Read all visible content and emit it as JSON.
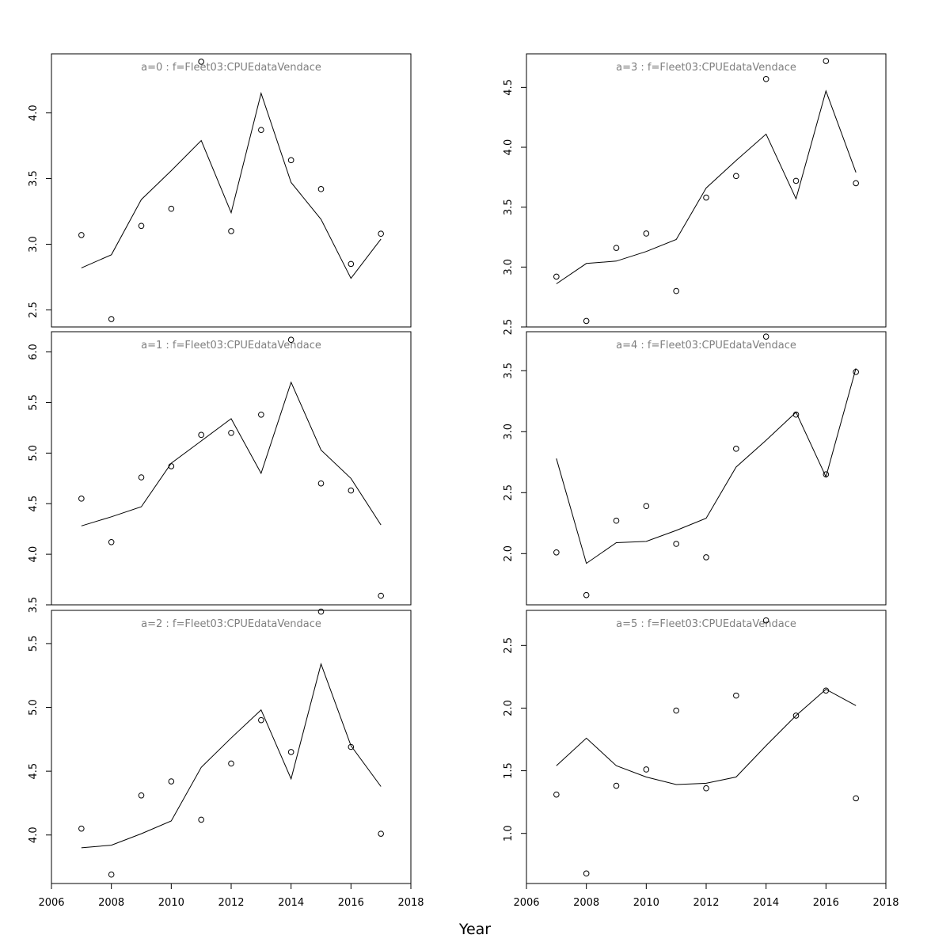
{
  "xlabel": "Year",
  "colors": {
    "axis": "#000000",
    "panel_title": "#7f7f7f",
    "line": "#000000",
    "points": "#000000"
  },
  "x_axis": {
    "xlim": [
      2006,
      2018
    ],
    "ticks": [
      "2006",
      "2008",
      "2010",
      "2012",
      "2014",
      "2016",
      "2018"
    ]
  },
  "chart_data": [
    {
      "type": "line",
      "title": "a=0 : f=Fleet03:CPUEdataVendace",
      "x": [
        2007,
        2008,
        2009,
        2010,
        2011,
        2012,
        2013,
        2014,
        2015,
        2016,
        2017
      ],
      "series": [
        {
          "style": "points",
          "values": [
            3.07,
            2.43,
            3.14,
            3.27,
            4.39,
            3.1,
            3.87,
            3.64,
            3.42,
            2.85,
            3.08
          ]
        },
        {
          "style": "line",
          "values": [
            2.82,
            2.92,
            3.34,
            3.56,
            3.79,
            3.24,
            4.15,
            3.47,
            3.19,
            2.74,
            3.04
          ]
        }
      ],
      "ylim": [
        2.37,
        4.45
      ],
      "y_ticks": [
        "2.5",
        "3.0",
        "3.5",
        "4.0"
      ]
    },
    {
      "type": "line",
      "title": "a=1 : f=Fleet03:CPUEdataVendace",
      "x": [
        2007,
        2008,
        2009,
        2010,
        2011,
        2012,
        2013,
        2014,
        2015,
        2016,
        2017
      ],
      "series": [
        {
          "style": "points",
          "values": [
            4.55,
            4.12,
            4.76,
            4.87,
            5.18,
            5.2,
            5.38,
            6.12,
            4.7,
            4.63,
            3.59
          ]
        },
        {
          "style": "line",
          "values": [
            4.28,
            4.37,
            4.47,
            4.9,
            5.12,
            5.34,
            4.8,
            5.7,
            5.03,
            4.75,
            4.29
          ]
        }
      ],
      "ylim": [
        3.5,
        6.2
      ],
      "y_ticks": [
        "3.5",
        "4.0",
        "4.5",
        "5.0",
        "5.5",
        "6.0"
      ]
    },
    {
      "type": "line",
      "title": "a=2 : f=Fleet03:CPUEdataVendace",
      "x": [
        2007,
        2008,
        2009,
        2010,
        2011,
        2012,
        2013,
        2014,
        2015,
        2016,
        2017
      ],
      "series": [
        {
          "style": "points",
          "values": [
            4.05,
            3.69,
            4.31,
            4.42,
            4.12,
            4.56,
            4.9,
            4.65,
            5.75,
            4.69,
            4.01
          ]
        },
        {
          "style": "line",
          "values": [
            3.9,
            3.92,
            4.01,
            4.11,
            4.53,
            4.76,
            4.98,
            4.44,
            5.34,
            4.7,
            4.38
          ]
        }
      ],
      "ylim": [
        3.62,
        5.76
      ],
      "y_ticks": [
        "4.0",
        "4.5",
        "5.0",
        "5.5"
      ]
    },
    {
      "type": "line",
      "title": "a=3 : f=Fleet03:CPUEdataVendace",
      "x": [
        2007,
        2008,
        2009,
        2010,
        2011,
        2012,
        2013,
        2014,
        2015,
        2016,
        2017
      ],
      "series": [
        {
          "style": "points",
          "values": [
            2.92,
            2.55,
            3.16,
            3.28,
            2.8,
            3.58,
            3.76,
            4.57,
            3.72,
            4.72,
            3.7
          ]
        },
        {
          "style": "line",
          "values": [
            2.86,
            3.03,
            3.05,
            3.13,
            3.23,
            3.66,
            3.89,
            4.11,
            3.57,
            4.47,
            3.79
          ]
        }
      ],
      "ylim": [
        2.5,
        4.78
      ],
      "y_ticks": [
        "2.5",
        "3.0",
        "3.5",
        "4.0",
        "4.5"
      ]
    },
    {
      "type": "line",
      "title": "a=4 : f=Fleet03:CPUEdataVendace",
      "x": [
        2007,
        2008,
        2009,
        2010,
        2011,
        2012,
        2013,
        2014,
        2015,
        2016,
        2017
      ],
      "series": [
        {
          "style": "points",
          "values": [
            2.01,
            1.66,
            2.27,
            2.39,
            2.08,
            1.97,
            2.86,
            3.78,
            3.14,
            2.65,
            3.49
          ]
        },
        {
          "style": "line",
          "values": [
            2.78,
            1.92,
            2.09,
            2.1,
            2.19,
            2.29,
            2.71,
            2.93,
            3.16,
            2.63,
            3.52
          ]
        }
      ],
      "ylim": [
        1.58,
        3.82
      ],
      "y_ticks": [
        "2.0",
        "2.5",
        "3.0",
        "3.5"
      ]
    },
    {
      "type": "line",
      "title": "a=5 : f=Fleet03:CPUEdataVendace",
      "x": [
        2007,
        2008,
        2009,
        2010,
        2011,
        2012,
        2013,
        2014,
        2015,
        2016,
        2017
      ],
      "series": [
        {
          "style": "points",
          "values": [
            1.31,
            0.68,
            1.38,
            1.51,
            1.98,
            1.36,
            2.1,
            2.7,
            1.94,
            2.14,
            1.28
          ]
        },
        {
          "style": "line",
          "values": [
            1.54,
            1.76,
            1.54,
            1.45,
            1.39,
            1.4,
            1.45,
            1.7,
            1.94,
            2.15,
            2.02
          ]
        }
      ],
      "ylim": [
        0.6,
        2.78
      ],
      "y_ticks": [
        "1.0",
        "1.5",
        "2.0",
        "2.5"
      ]
    }
  ]
}
